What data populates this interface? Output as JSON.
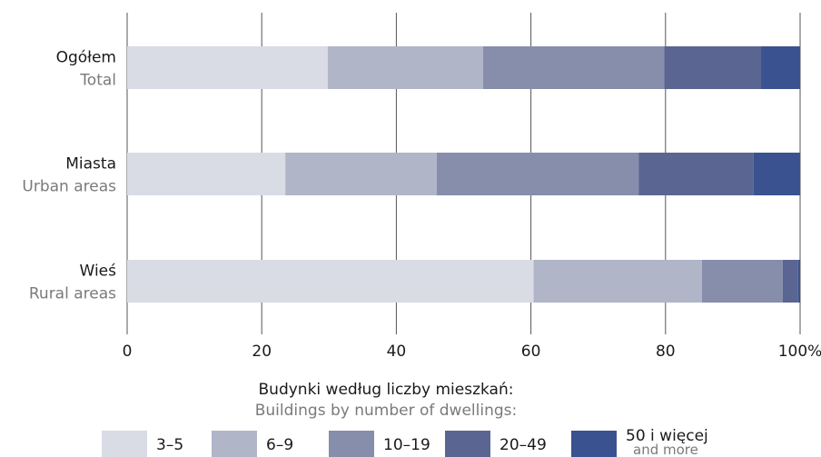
{
  "chart_data": {
    "type": "bar",
    "orientation": "horizontal",
    "stacked": true,
    "categories": [
      {
        "pl": "Ogółem",
        "en": "Total"
      },
      {
        "pl": "Miasta",
        "en": "Urban areas"
      },
      {
        "pl": "Wieś",
        "en": "Rural areas"
      }
    ],
    "series": [
      {
        "name": "3–5",
        "color": "#d9dbe5",
        "values": [
          29.8,
          23.5,
          60.4
        ]
      },
      {
        "name": "6–9",
        "color": "#b0b5c8",
        "values": [
          23.1,
          22.5,
          25.0
        ]
      },
      {
        "name": "10–19",
        "color": "#878eab",
        "values": [
          26.9,
          30.0,
          12.0
        ]
      },
      {
        "name": "20–49",
        "color": "#5a6592",
        "values": [
          14.4,
          17.1,
          2.3
        ]
      },
      {
        "name": "50 i więcej",
        "name_en": "and more",
        "color": "#3b5290",
        "values": [
          5.8,
          6.9,
          0.3
        ]
      }
    ],
    "xlim": [
      0,
      100
    ],
    "xticks": [
      "0",
      "20",
      "40",
      "60",
      "80",
      "100%"
    ],
    "grid": true,
    "legend": {
      "title_pl": "Budynki według liczby mieszkań:",
      "title_en": "Buildings by number of dwellings:",
      "placement": "bottom"
    }
  }
}
